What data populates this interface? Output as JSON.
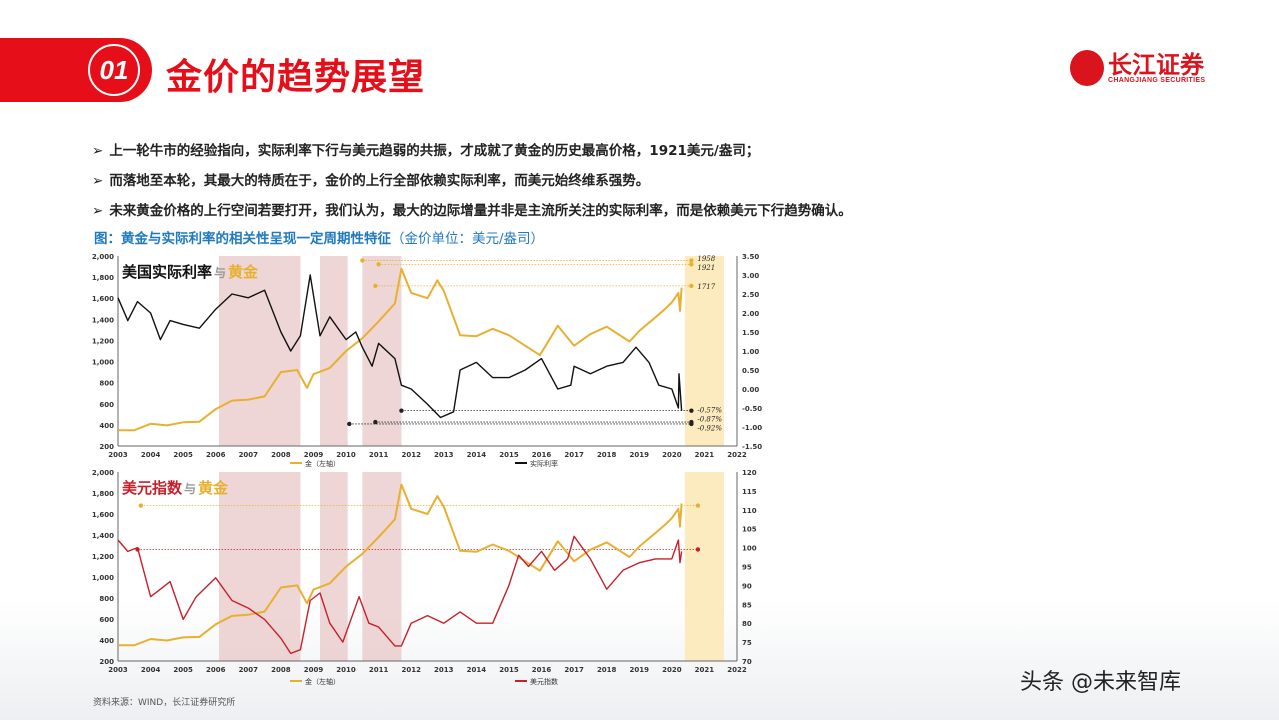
{
  "header": {
    "number": "01",
    "title": "金价的趋势展望"
  },
  "logo": {
    "cn": "长江证券",
    "en": "CHANGJIANG SECURITIES"
  },
  "bullets": [
    "上一轮牛市的经验指向，实际利率下行与美元趋弱的共振，才成就了黄金的历史最高价格，1921美元/盎司；",
    "而落地至本轮，其最大的特质在于，金价的上行全部依赖实际利率，而美元始终维系强势。",
    "未来黄金价格的上行空间若要打开，我们认为，最大的边际增量并非是主流所关注的实际利率，而是依赖美元下行趋势确认。"
  ],
  "bullet_marker": "➢",
  "caption": {
    "main": "图：黄金与实际利率的相关性呈现一定周期性特征",
    "sub": "（金价单位：美元/盎司）"
  },
  "source": "资料来源：WIND，长江证券研究所",
  "watermark": "头条 @未来智库",
  "colors": {
    "brand": "#e60f19",
    "gold": "#e8b030",
    "real_rate": "#111111",
    "dxy": "#c8202a",
    "shade": "#e8c8c8",
    "forecast": "#fdebc0"
  },
  "chart_data": [
    {
      "type": "line",
      "title_parts": [
        "美国实际利率",
        "与",
        "黄金"
      ],
      "x_ticks": [
        "2003",
        "2004",
        "2005",
        "2006",
        "2007",
        "2008",
        "2009",
        "2010",
        "2011",
        "2012",
        "2013",
        "2014",
        "2015",
        "2016",
        "2017",
        "2018",
        "2019",
        "2020",
        "2021",
        "2022"
      ],
      "xlim": [
        2003,
        2022
      ],
      "y_left": {
        "lim": [
          200,
          2000
        ],
        "ticks": [
          "200",
          "400",
          "600",
          "800",
          "1,000",
          "1,200",
          "1,400",
          "1,600",
          "1,800",
          "2,000"
        ]
      },
      "y_right": {
        "lim": [
          -1.5,
          3.5
        ],
        "ticks": [
          "-1.50",
          "-1.00",
          "-0.50",
          "0.00",
          "0.50",
          "1.00",
          "1.50",
          "2.00",
          "2.50",
          "3.00",
          "3.50"
        ]
      },
      "shaded_periods": [
        [
          2006.1,
          2008.6
        ],
        [
          2009.2,
          2010.05
        ],
        [
          2010.5,
          2011.7
        ]
      ],
      "forecast_period": [
        2020.4,
        2021.6
      ],
      "series": [
        {
          "name": "金（左轴）",
          "axis": "left",
          "x": [
            2003,
            2003.5,
            2004,
            2004.5,
            2005,
            2005.5,
            2006,
            2006.5,
            2007,
            2007.5,
            2008,
            2008.5,
            2008.8,
            2009,
            2009.5,
            2010,
            2010.5,
            2011,
            2011.5,
            2011.7,
            2012,
            2012.5,
            2012.8,
            2013,
            2013.5,
            2014,
            2014.5,
            2015,
            2015.5,
            2015.95,
            2016.5,
            2017,
            2017.5,
            2018,
            2018.7,
            2019,
            2019.5,
            2019.8,
            2020,
            2020.2,
            2020.25,
            2020.3
          ],
          "y": [
            350,
            350,
            410,
            395,
            425,
            430,
            550,
            630,
            640,
            670,
            900,
            920,
            750,
            880,
            940,
            1100,
            1220,
            1380,
            1550,
            1880,
            1650,
            1600,
            1770,
            1670,
            1250,
            1240,
            1310,
            1250,
            1150,
            1060,
            1340,
            1150,
            1260,
            1330,
            1190,
            1290,
            1420,
            1500,
            1560,
            1650,
            1480,
            1700
          ]
        },
        {
          "name": "实际利率",
          "axis": "right",
          "x": [
            2003,
            2003.3,
            2003.6,
            2004,
            2004.3,
            2004.6,
            2005,
            2005.5,
            2006,
            2006.5,
            2007,
            2007.5,
            2008,
            2008.3,
            2008.6,
            2008.9,
            2009.2,
            2009.5,
            2010,
            2010.3,
            2010.5,
            2010.8,
            2011,
            2011.5,
            2011.7,
            2012,
            2012.5,
            2012.9,
            2013.3,
            2013.5,
            2014,
            2014.5,
            2015,
            2015.5,
            2016,
            2016.5,
            2016.9,
            2017,
            2017.5,
            2018,
            2018.5,
            2018.9,
            2019.3,
            2019.6,
            2020,
            2020.2,
            2020.22,
            2020.3
          ],
          "y": [
            2.4,
            1.8,
            2.3,
            2.0,
            1.3,
            1.8,
            1.7,
            1.6,
            2.1,
            2.5,
            2.4,
            2.6,
            1.5,
            1.0,
            1.4,
            3.0,
            1.4,
            1.9,
            1.3,
            1.5,
            1.1,
            0.6,
            1.2,
            0.8,
            0.1,
            0.0,
            -0.4,
            -0.75,
            -0.6,
            0.5,
            0.7,
            0.3,
            0.3,
            0.5,
            0.8,
            0.0,
            0.1,
            0.6,
            0.4,
            0.6,
            0.7,
            1.1,
            0.7,
            0.1,
            0.0,
            -0.5,
            0.4,
            -0.57
          ]
        }
      ],
      "annotations": [
        {
          "label": "1958",
          "axis": "left",
          "value": 1958,
          "from": 2010.5
        },
        {
          "label": "1921",
          "axis": "left",
          "value": 1921,
          "from": 2011
        },
        {
          "label": "1717",
          "axis": "left",
          "value": 1717,
          "from": 2010.9
        },
        {
          "label": "-0.57%",
          "axis": "right",
          "value": -0.57,
          "from": 2011.7
        },
        {
          "label": "-0.87%",
          "axis": "right",
          "value": -0.87,
          "from": 2010.9
        },
        {
          "label": "-0.92%",
          "axis": "right",
          "value": -0.92,
          "from": 2010.1
        }
      ]
    },
    {
      "type": "line",
      "title_parts": [
        "美元指数",
        "与",
        "黄金"
      ],
      "x_ticks": [
        "2003",
        "2004",
        "2005",
        "2006",
        "2007",
        "2008",
        "2009",
        "2010",
        "2011",
        "2012",
        "2013",
        "2014",
        "2015",
        "2016",
        "2017",
        "2018",
        "2019",
        "2020",
        "2021",
        "2022"
      ],
      "xlim": [
        2003,
        2022
      ],
      "y_left": {
        "lim": [
          200,
          2000
        ],
        "ticks": [
          "200",
          "400",
          "600",
          "800",
          "1,000",
          "1,200",
          "1,400",
          "1,600",
          "1,800",
          "2,000"
        ]
      },
      "y_right": {
        "lim": [
          70,
          120
        ],
        "ticks": [
          "70",
          "75",
          "80",
          "85",
          "90",
          "95",
          "100",
          "105",
          "110",
          "115",
          "120"
        ]
      },
      "shaded_periods": [
        [
          2006.1,
          2008.6
        ],
        [
          2009.2,
          2010.05
        ],
        [
          2010.5,
          2011.7
        ]
      ],
      "forecast_period": [
        2020.4,
        2021.6
      ],
      "series": [
        {
          "name": "金（左轴）",
          "axis": "left",
          "ref": 0
        },
        {
          "name": "美元指数",
          "axis": "right",
          "x": [
            2003,
            2003.3,
            2003.6,
            2004,
            2004.3,
            2004.6,
            2005,
            2005.4,
            2006,
            2006.5,
            2007,
            2007.5,
            2008,
            2008.3,
            2008.6,
            2008.9,
            2009.2,
            2009.5,
            2009.9,
            2010.4,
            2010.7,
            2011,
            2011.5,
            2011.7,
            2012,
            2012.5,
            2013,
            2013.5,
            2014,
            2014.5,
            2015,
            2015.3,
            2015.6,
            2016,
            2016.4,
            2016.8,
            2017,
            2017.5,
            2018,
            2018.5,
            2019,
            2019.5,
            2020,
            2020.2,
            2020.25,
            2020.3
          ],
          "y": [
            102,
            99,
            100,
            87,
            89,
            91,
            81,
            87,
            92,
            86,
            84,
            81,
            76,
            72,
            73,
            86,
            88,
            80,
            75,
            87,
            80,
            79,
            74,
            74,
            80,
            82,
            80,
            83,
            80,
            80,
            90,
            98,
            95,
            99,
            94,
            97,
            103,
            97,
            89,
            94,
            96,
            97,
            97,
            102,
            96,
            99
          ]
        }
      ],
      "annotations": [
        {
          "label": "",
          "axis": "left",
          "value": 1680,
          "from": 2003.7,
          "to": 2020.8
        },
        {
          "label": "",
          "axis": "right",
          "value": 99.5,
          "from": 2003.6,
          "to": 2020.8
        }
      ]
    }
  ]
}
